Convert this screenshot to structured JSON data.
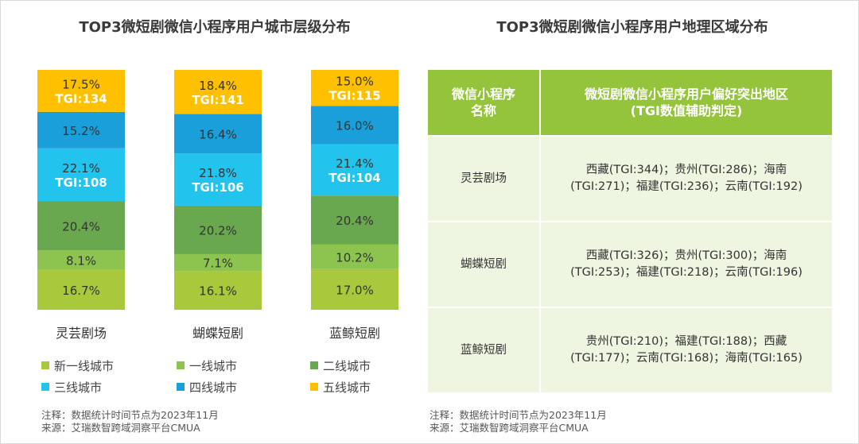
{
  "left_title": "TOP3微短剧微信小程序用户城市层级分布",
  "right_title": "TOP3微短剧微信小程序用户地理区域分布",
  "chart_data": {
    "type": "bar",
    "stacked": true,
    "categories": [
      "灵芸剧场",
      "蝴蝶短剧",
      "蓝鲸短剧"
    ],
    "series": [
      {
        "name": "新一线城市",
        "color": "#a8c93b",
        "values": [
          16.7,
          16.1,
          17.0
        ],
        "labels": [
          "16.7%",
          "16.1%",
          "17.0%"
        ]
      },
      {
        "name": "一线城市",
        "color": "#8dc450",
        "values": [
          8.1,
          7.1,
          10.2
        ],
        "labels": [
          "8.1%",
          "7.1%",
          "10.2%"
        ]
      },
      {
        "name": "二线城市",
        "color": "#6aa84f",
        "values": [
          20.4,
          20.2,
          20.4
        ],
        "labels": [
          "20.4%",
          "20.2%",
          "20.4%"
        ]
      },
      {
        "name": "三线城市",
        "color": "#22c3ec",
        "values": [
          22.1,
          21.8,
          21.4
        ],
        "labels": [
          "22.1%",
          "21.8%",
          "21.4%"
        ],
        "tgi": [
          "TGI:108",
          "TGI:106",
          "TGI:104"
        ]
      },
      {
        "name": "四线城市",
        "color": "#1b9fdb",
        "values": [
          15.2,
          16.4,
          16.0
        ],
        "labels": [
          "15.2%",
          "16.4%",
          "16.0%"
        ]
      },
      {
        "name": "五线城市",
        "color": "#ffc000",
        "values": [
          17.5,
          18.4,
          15.0
        ],
        "labels": [
          "17.5%",
          "18.4%",
          "15.0%"
        ],
        "tgi": [
          "TGI:134",
          "TGI:141",
          "TGI:115"
        ]
      }
    ]
  },
  "left_note": {
    "line1": "注释：数据统计时间节点为2023年11月",
    "line2": "来源：艾瑞数智跨域洞察平台CMUA"
  },
  "table": {
    "header_col1": "微信小程序名称",
    "header_col2_line1": "微短剧微信小程序用户偏好突出地区",
    "header_col2_line2": "(TGI数值辅助判定)",
    "rows": [
      {
        "name": "灵芸剧场",
        "line1": "西藏(TGI:344)；贵州(TGI:286)；海南",
        "line2": "(TGI:271)；福建(TGI:236)；云南(TGI:192)"
      },
      {
        "name": "蝴蝶短剧",
        "line1": "西藏(TGI:326)；贵州(TGI:300)；海南",
        "line2": "(TGI:253)；福建(TGI:218)；云南(TGI:196)"
      },
      {
        "name": "蓝鲸短剧",
        "line1": "贵州(TGI:210)；福建(TGI:188)；西藏",
        "line2": "(TGI:177)；云南(TGI:168)；海南(TGI:165)"
      }
    ]
  },
  "right_note": {
    "line1": "注释：数据统计时间节点为2023年11月",
    "line2": "来源：艾瑞数智跨域洞察平台CMUA"
  }
}
